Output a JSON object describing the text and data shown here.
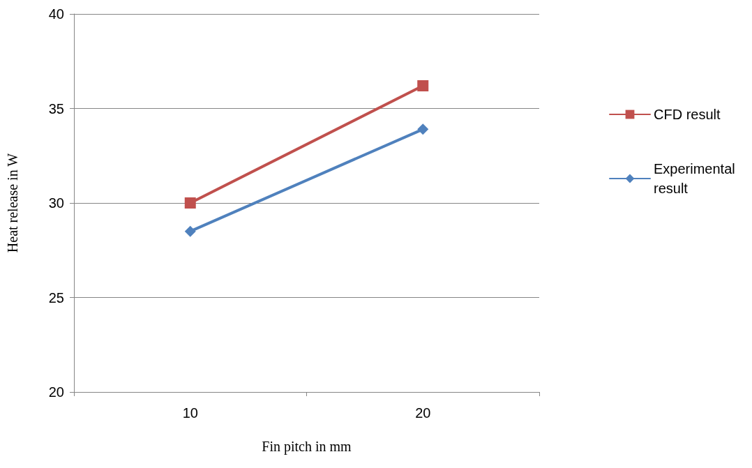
{
  "chart_data": {
    "type": "line",
    "xlabel": "Fin pitch in mm",
    "ylabel": "Heat release in W",
    "categories": [
      "10",
      "20"
    ],
    "series": [
      {
        "name": "CFD result",
        "color": "#c0504d",
        "marker": "square",
        "values": [
          30.0,
          36.2
        ]
      },
      {
        "name": "Experimental result",
        "color": "#4f81bd",
        "marker": "diamond",
        "values": [
          28.5,
          33.9
        ]
      }
    ],
    "ylim": [
      20,
      40
    ],
    "yticks": [
      20,
      25,
      30,
      35,
      40
    ],
    "grid": "y",
    "legend": "right",
    "line_style": "solid"
  }
}
